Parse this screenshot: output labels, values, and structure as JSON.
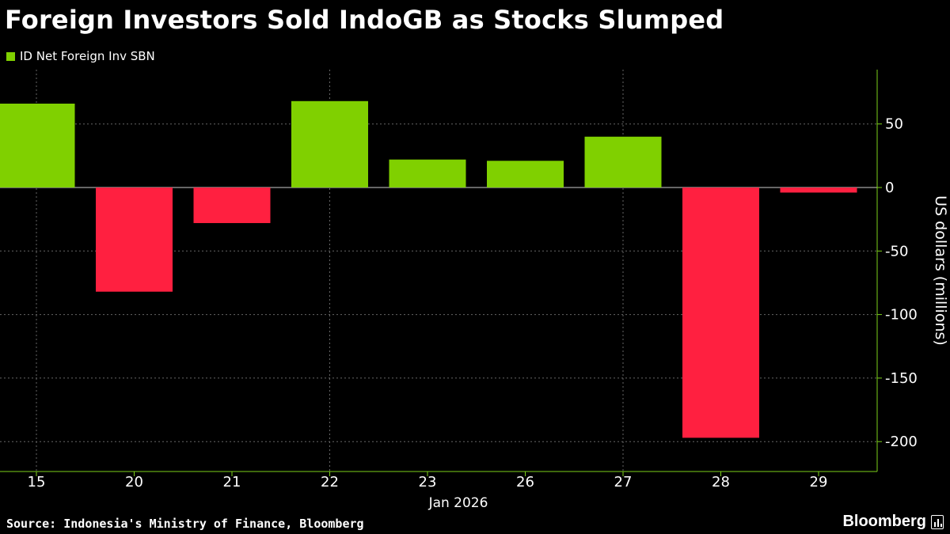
{
  "chart_data": {
    "type": "bar",
    "title": "Foreign Investors Sold IndoGB as Stocks Slumped",
    "legend": [
      "ID Net Foreign Inv SBN"
    ],
    "categories": [
      "15",
      "20",
      "21",
      "22",
      "23",
      "26",
      "27",
      "28",
      "29"
    ],
    "values": [
      66,
      -82,
      -28,
      68,
      22,
      21,
      40,
      -197,
      -4
    ],
    "xlabel": "Jan 2026",
    "ylabel": "US dollars (millions)",
    "ylim": [
      -222,
      93
    ],
    "yticks": [
      50,
      0,
      -50,
      -100,
      -150,
      -200
    ],
    "ytick_labels": [
      "50",
      "0",
      "-50",
      "-100",
      "-150",
      "-200"
    ],
    "positive_color": "#80d000",
    "negative_color": "#ff2040",
    "axis_color": "#7ccf1a",
    "grid": true
  },
  "source": "Source: Indonesia's Ministry of Finance, Bloomberg",
  "brand": "Bloomberg"
}
